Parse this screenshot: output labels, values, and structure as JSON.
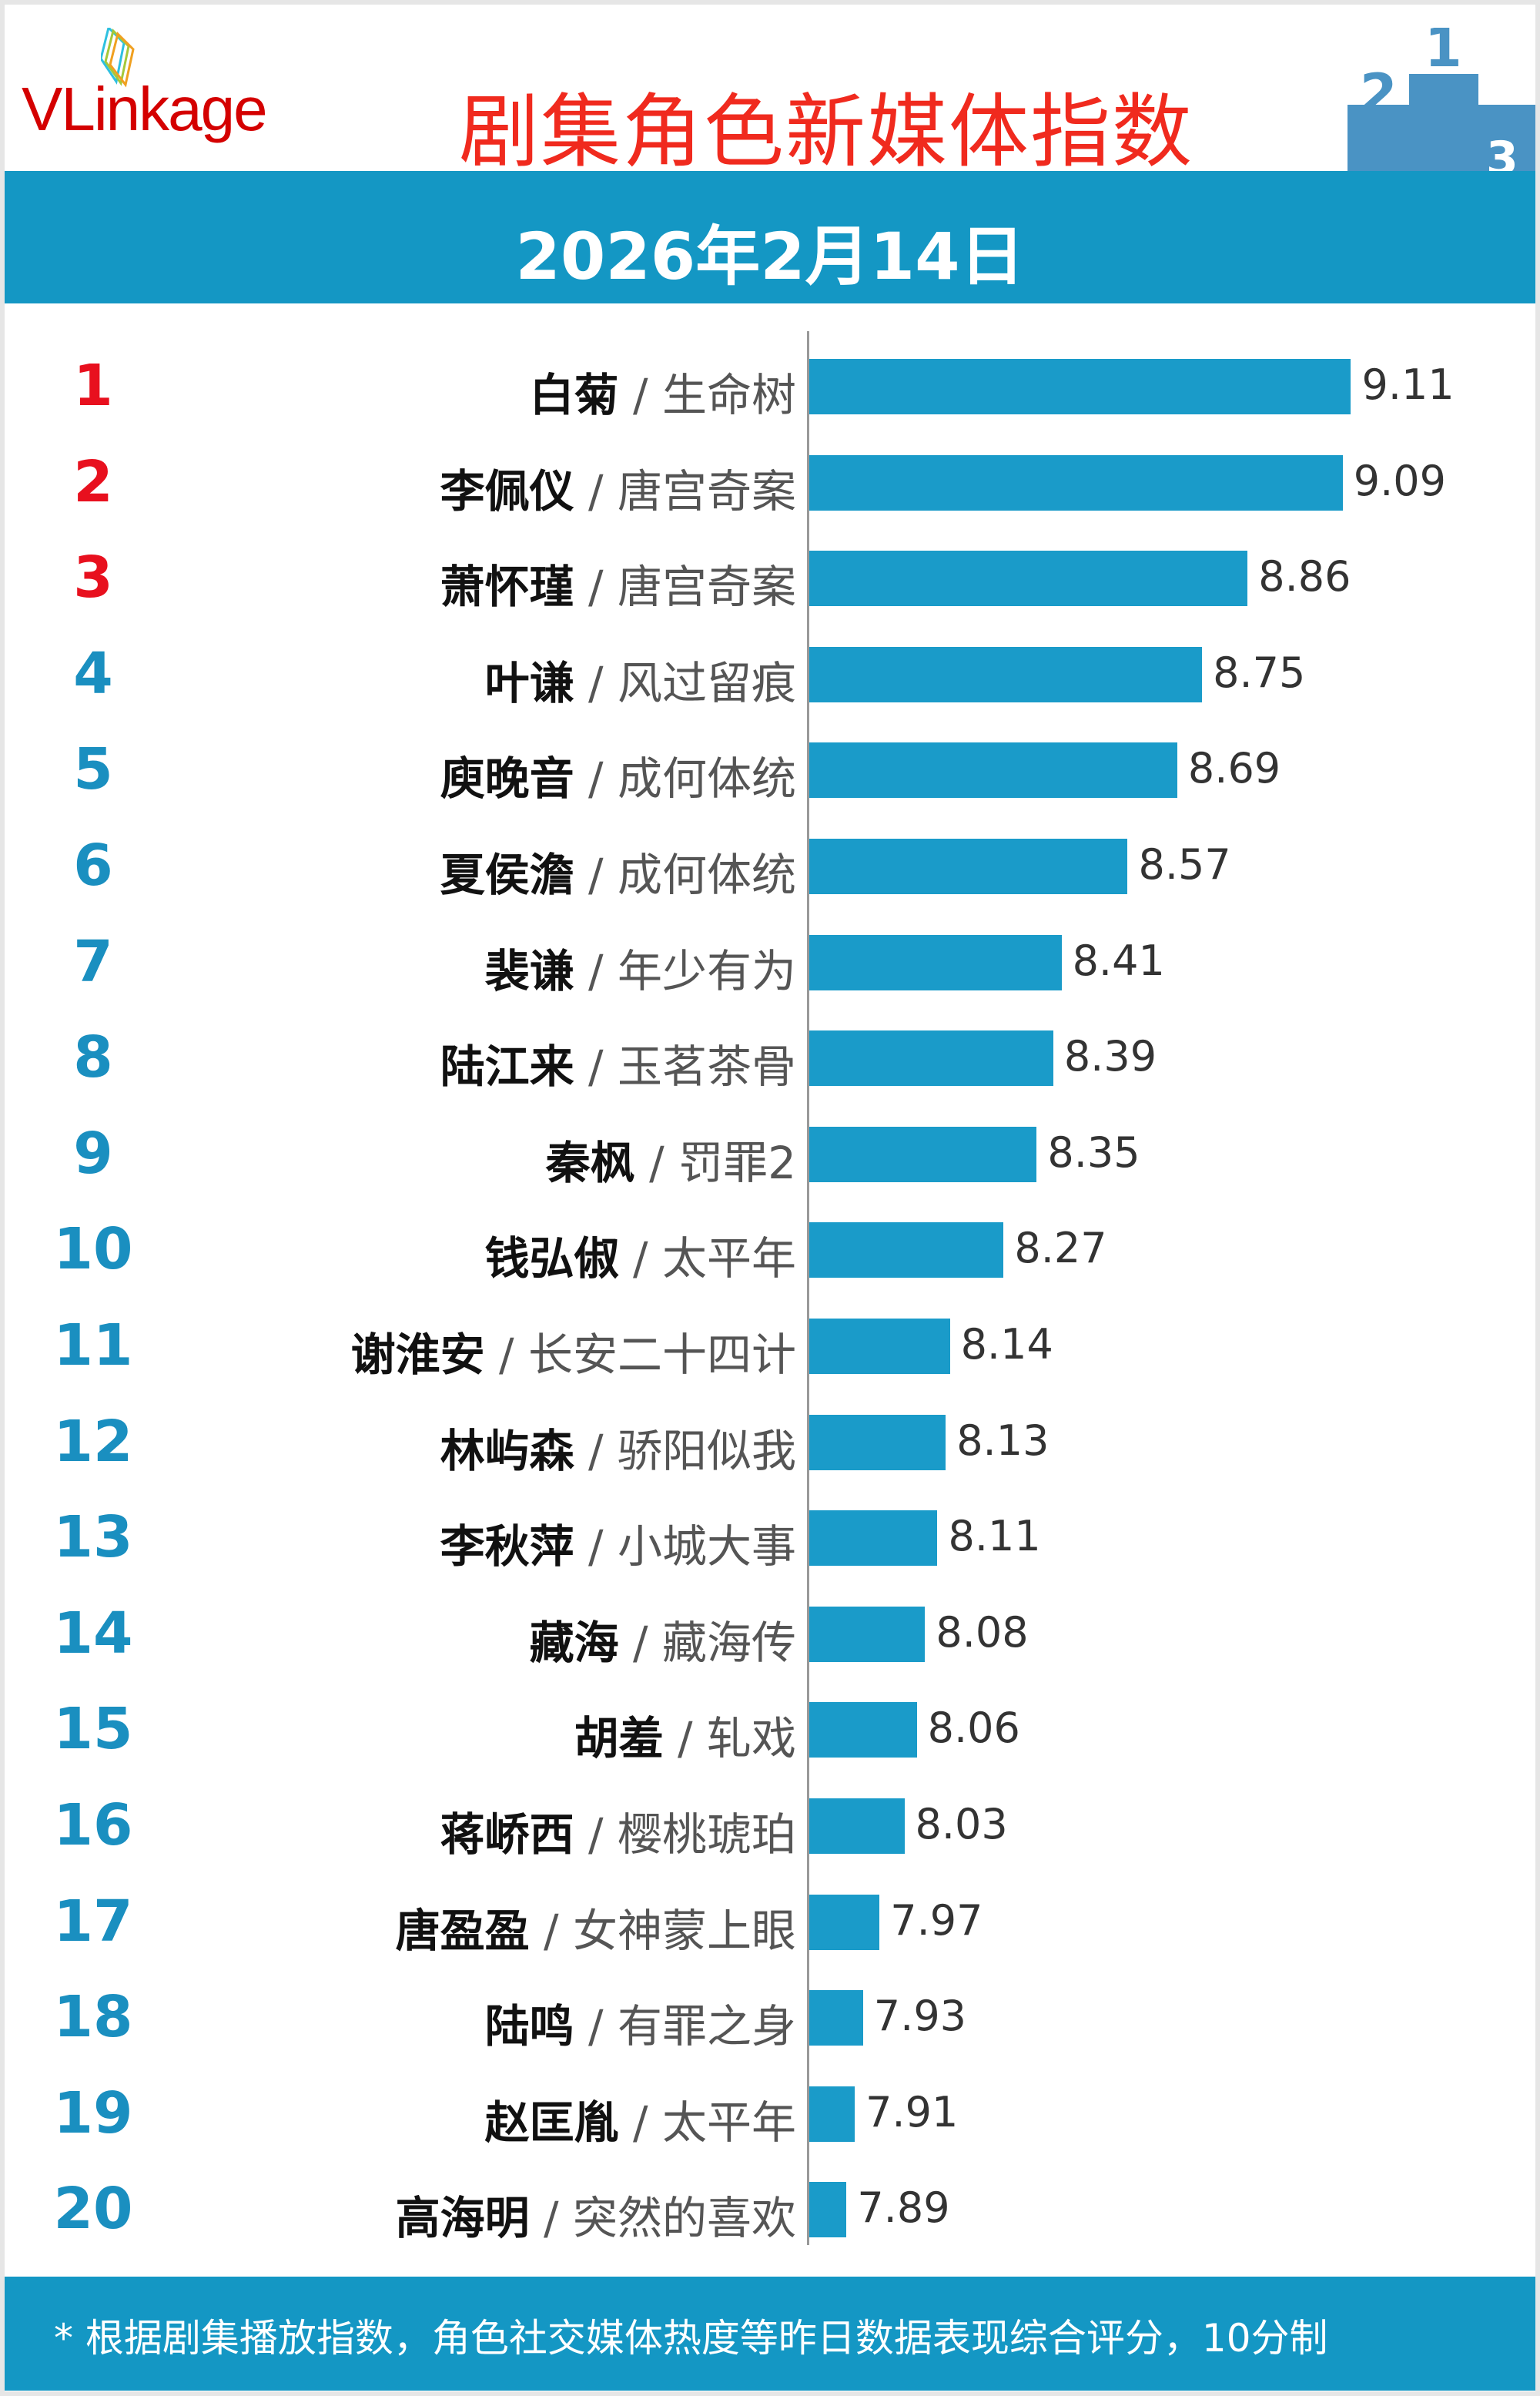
{
  "header": {
    "logo": "VLinkage",
    "title": "剧集角色新媒体指数",
    "date": "2026年2月14日"
  },
  "colors": {
    "bar": "#1a9bc9",
    "top_rank": "#e8101e",
    "rank": "#1a8fc0",
    "title": "#f02a1e",
    "band": "#1497c4"
  },
  "chart_data": {
    "type": "bar",
    "orientation": "horizontal",
    "title": "剧集角色新媒体指数",
    "ranks": [
      "1",
      "2",
      "3",
      "4",
      "5",
      "6",
      "7",
      "8",
      "9",
      "10",
      "11",
      "12",
      "13",
      "14",
      "15",
      "16",
      "17",
      "18",
      "19",
      "20"
    ],
    "categories": [
      "白菊",
      "李佩仪",
      "萧怀瑾",
      "叶谦",
      "庾晚音",
      "夏侯澹",
      "裴谦",
      "陆江来",
      "秦枫",
      "钱弘俶",
      "谢淮安",
      "林屿森",
      "李秋萍",
      "藏海",
      "胡羞",
      "蒋峤西",
      "唐盈盈",
      "陆鸣",
      "赵匡胤",
      "高海明"
    ],
    "shows": [
      "/ 生命树",
      "/ 唐宫奇案",
      "/ 唐宫奇案",
      "/ 风过留痕",
      "/ 成何体统",
      "/ 成何体统",
      "/ 年少有为",
      "/ 玉茗茶骨",
      "/ 罚罪2",
      "/ 太平年",
      "/ 长安二十四计",
      "/ 骄阳似我",
      "/ 小城大事",
      "/ 藏海传",
      "/ 轧戏",
      "/ 樱桃琥珀",
      "/ 女神蒙上眼",
      "/ 有罪之身",
      "/ 太平年",
      "/ 突然的喜欢"
    ],
    "values": [
      9.11,
      9.09,
      8.86,
      8.75,
      8.69,
      8.57,
      8.41,
      8.39,
      8.35,
      8.27,
      8.14,
      8.13,
      8.11,
      8.08,
      8.06,
      8.03,
      7.97,
      7.93,
      7.91,
      7.89
    ],
    "value_labels": [
      "9.11",
      "9.09",
      "8.86",
      "8.75",
      "8.69",
      "8.57",
      "8.41",
      "8.39",
      "8.35",
      "8.27",
      "8.14",
      "8.13",
      "8.11",
      "8.08",
      "8.06",
      "8.03",
      "7.97",
      "7.93",
      "7.91",
      "7.89"
    ],
    "xlim": [
      7.8,
      9.3
    ],
    "grid": false
  },
  "footer": {
    "note": "* 根据剧集播放指数，角色社交媒体热度等昨日数据表现综合评分，10分制"
  }
}
